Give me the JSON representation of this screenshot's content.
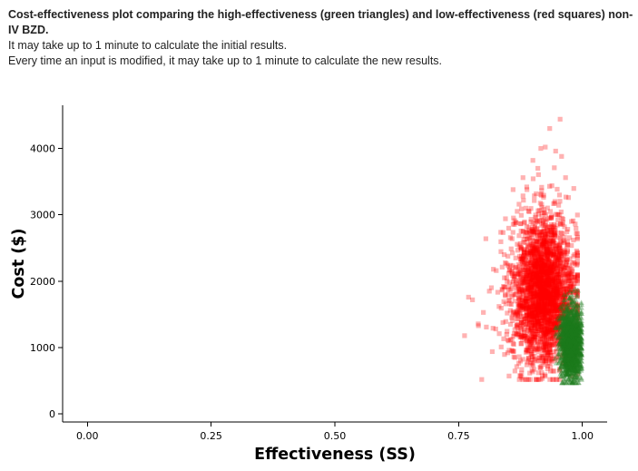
{
  "intro": {
    "headline": "Cost-effectiveness plot comparing the high-effectiveness (green triangles) and low-effectiveness (red squares) non-IV BZD.",
    "note_1": "It may take up to 1 minute to calculate the initial results.",
    "note_2": "Every time an input is modified, it may take up to 1 minute to calculate the new results."
  },
  "chart_data": {
    "type": "scatter",
    "title": "",
    "xlabel": "Effectiveness (SS)",
    "ylabel": "Cost ($)",
    "xlim": [
      -0.05,
      1.05
    ],
    "ylim": [
      -120,
      4650
    ],
    "x_ticks": [
      0.0,
      0.25,
      0.5,
      0.75,
      1.0
    ],
    "x_tick_labels": [
      "0.00",
      "0.25",
      "0.50",
      "0.75",
      "1.00"
    ],
    "y_ticks": [
      0,
      1000,
      2000,
      3000,
      4000
    ],
    "y_tick_labels": [
      "0",
      "1000",
      "2000",
      "3000",
      "4000"
    ],
    "grid": false,
    "legend": "none",
    "series": [
      {
        "marker": "square",
        "color": "#ff0000",
        "opacity": 0.3,
        "cloud": {
          "x_mean": 0.922,
          "x_sd": 0.032,
          "x_min": 0.76,
          "x_max": 0.99,
          "y_mean": 1850,
          "y_sd": 560,
          "y_min": 520,
          "y_max": 4430
        },
        "values": [
          {
            "x": 0.762,
            "y": 1180
          },
          {
            "x": 0.77,
            "y": 1760
          },
          {
            "x": 0.778,
            "y": 1720
          },
          {
            "x": 0.79,
            "y": 1330
          },
          {
            "x": 0.8,
            "y": 1530
          },
          {
            "x": 0.806,
            "y": 1310
          },
          {
            "x": 0.805,
            "y": 2640
          },
          {
            "x": 0.812,
            "y": 1850
          },
          {
            "x": 0.818,
            "y": 940
          },
          {
            "x": 0.826,
            "y": 2160
          },
          {
            "x": 0.832,
            "y": 1210
          },
          {
            "x": 0.836,
            "y": 1010
          },
          {
            "x": 0.842,
            "y": 2400
          },
          {
            "x": 0.851,
            "y": 2120
          },
          {
            "x": 0.858,
            "y": 2640
          },
          {
            "x": 0.86,
            "y": 3380
          },
          {
            "x": 0.866,
            "y": 2880
          },
          {
            "x": 0.872,
            "y": 3160
          },
          {
            "x": 0.874,
            "y": 580
          },
          {
            "x": 0.88,
            "y": 3560
          },
          {
            "x": 0.888,
            "y": 3380
          },
          {
            "x": 0.9,
            "y": 3820
          },
          {
            "x": 0.91,
            "y": 3700
          },
          {
            "x": 0.916,
            "y": 4000
          },
          {
            "x": 0.925,
            "y": 4020
          },
          {
            "x": 0.934,
            "y": 4300
          },
          {
            "x": 0.946,
            "y": 3960
          },
          {
            "x": 0.955,
            "y": 4440
          },
          {
            "x": 0.958,
            "y": 3880
          },
          {
            "x": 0.966,
            "y": 3560
          },
          {
            "x": 0.972,
            "y": 3260
          },
          {
            "x": 0.978,
            "y": 2900
          },
          {
            "x": 0.982,
            "y": 2620
          },
          {
            "x": 0.985,
            "y": 2260
          }
        ]
      },
      {
        "marker": "triangle",
        "color": "#1e7a1e",
        "opacity": 0.35,
        "cloud": {
          "x_mean": 0.977,
          "x_sd": 0.011,
          "x_min": 0.945,
          "x_max": 0.998,
          "y_mean": 1080,
          "y_sd": 260,
          "y_min": 470,
          "y_max": 1920
        },
        "values": [
          {
            "x": 0.958,
            "y": 1200
          },
          {
            "x": 0.965,
            "y": 1720
          },
          {
            "x": 0.975,
            "y": 1850
          },
          {
            "x": 0.986,
            "y": 1880
          },
          {
            "x": 0.992,
            "y": 1600
          },
          {
            "x": 0.996,
            "y": 860
          },
          {
            "x": 0.99,
            "y": 560
          },
          {
            "x": 0.98,
            "y": 480
          },
          {
            "x": 0.968,
            "y": 600
          }
        ]
      }
    ]
  }
}
